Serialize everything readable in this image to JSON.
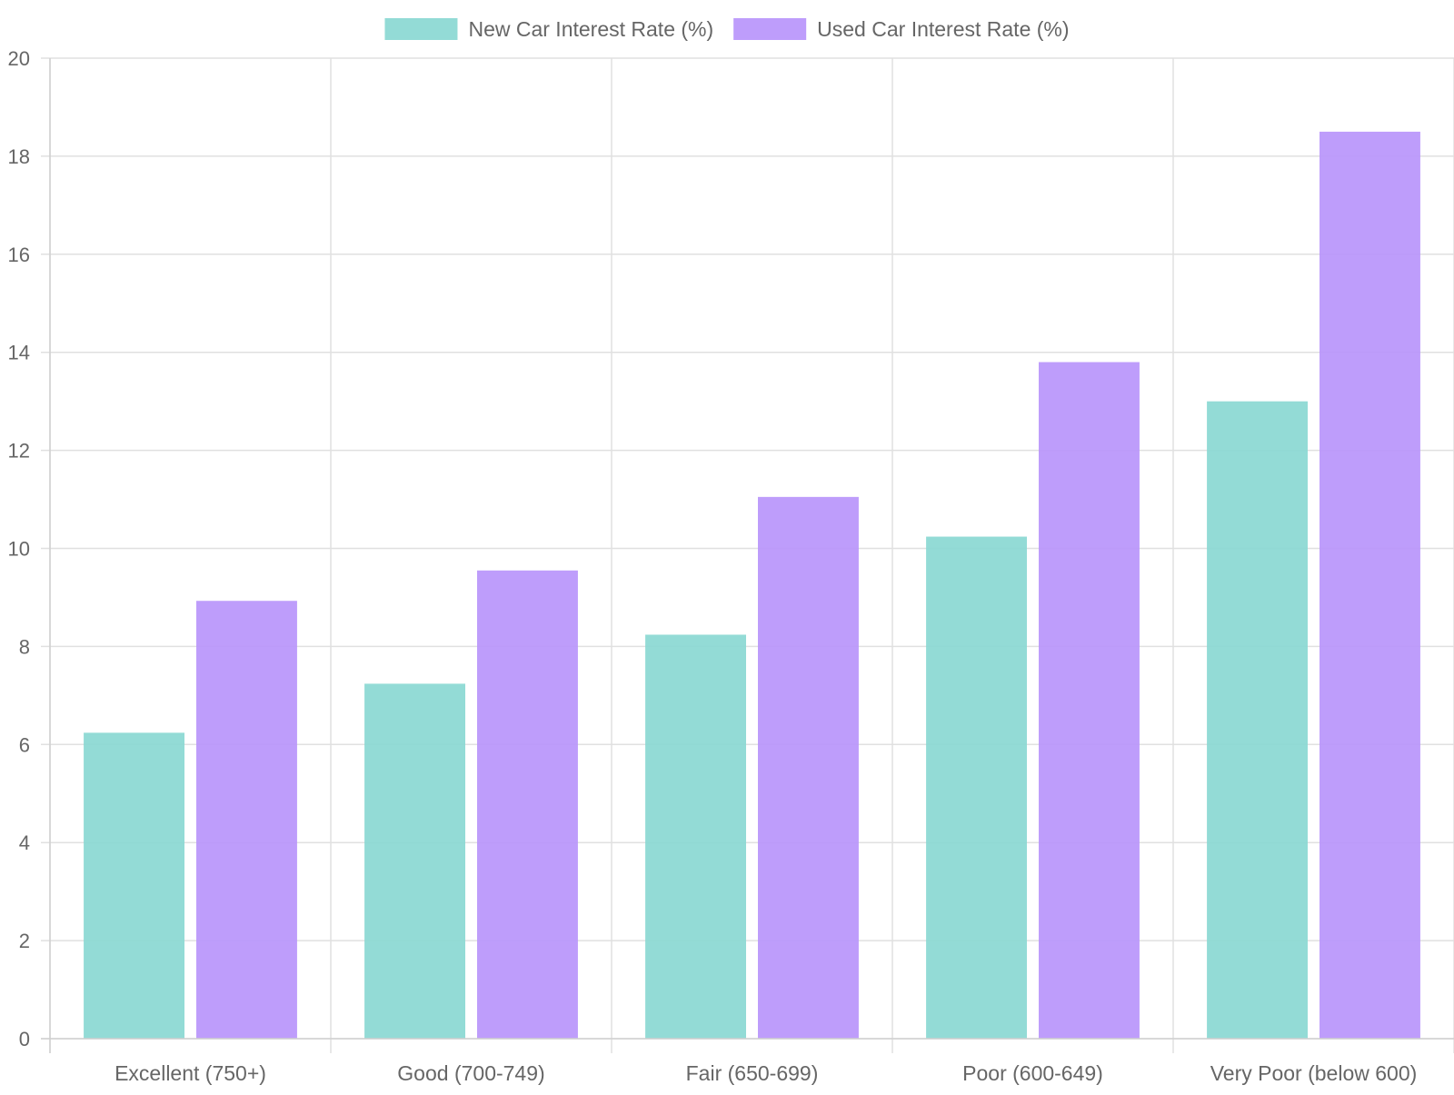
{
  "chart_data": {
    "type": "bar",
    "title": "",
    "xlabel": "",
    "ylabel": "",
    "categories": [
      "Excellent (750+)",
      "Good (700-749)",
      "Fair (650-699)",
      "Poor (600-649)",
      "Very Poor (below 600)"
    ],
    "series": [
      {
        "name": "New Car Interest Rate (%)",
        "values": [
          6.24,
          7.24,
          8.24,
          10.24,
          13.0
        ],
        "color": "#8ad8d3"
      },
      {
        "name": "Used Car Interest Rate (%)",
        "values": [
          8.93,
          9.55,
          11.05,
          13.8,
          18.5
        ],
        "color": "#b895fb"
      }
    ],
    "ylim": [
      0,
      20
    ],
    "yticks": [
      "0",
      "2",
      "4",
      "6",
      "8",
      "10",
      "12",
      "14",
      "16",
      "18",
      "20"
    ],
    "grid": true,
    "legend_position": "top"
  }
}
